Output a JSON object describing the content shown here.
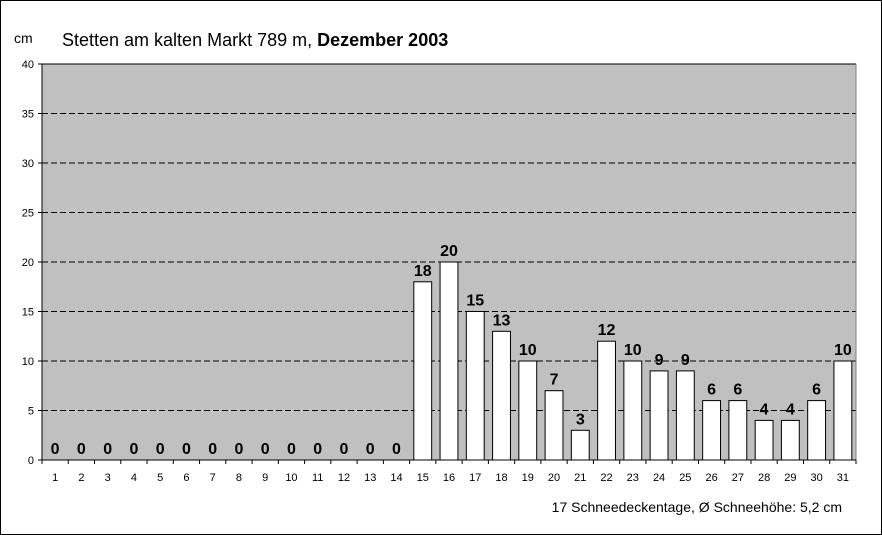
{
  "chart_data": {
    "type": "bar",
    "title_main": "Stetten am kalten Markt 789 m,",
    "title_bold": "Dezember 2003",
    "ylabel": "cm",
    "ylim": [
      0,
      40
    ],
    "yticks": [
      0,
      5,
      10,
      15,
      20,
      25,
      30,
      35,
      40
    ],
    "grid": true,
    "categories": [
      "1",
      "2",
      "3",
      "4",
      "5",
      "6",
      "7",
      "8",
      "9",
      "10",
      "11",
      "12",
      "13",
      "14",
      "15",
      "16",
      "17",
      "18",
      "19",
      "20",
      "21",
      "22",
      "23",
      "24",
      "25",
      "26",
      "27",
      "28",
      "29",
      "30",
      "31"
    ],
    "values": [
      0,
      0,
      0,
      0,
      0,
      0,
      0,
      0,
      0,
      0,
      0,
      0,
      0,
      0,
      18,
      20,
      15,
      13,
      10,
      7,
      3,
      12,
      10,
      9,
      9,
      6,
      6,
      4,
      4,
      6,
      10
    ],
    "footer": "17 Schneedeckentage,  Ø Schneehöhe:  5,2 cm",
    "colors": {
      "plot_background": "#c0c0c0",
      "bar_fill": "#ffffff",
      "bar_stroke": "#000000",
      "grid": "#000000"
    }
  }
}
